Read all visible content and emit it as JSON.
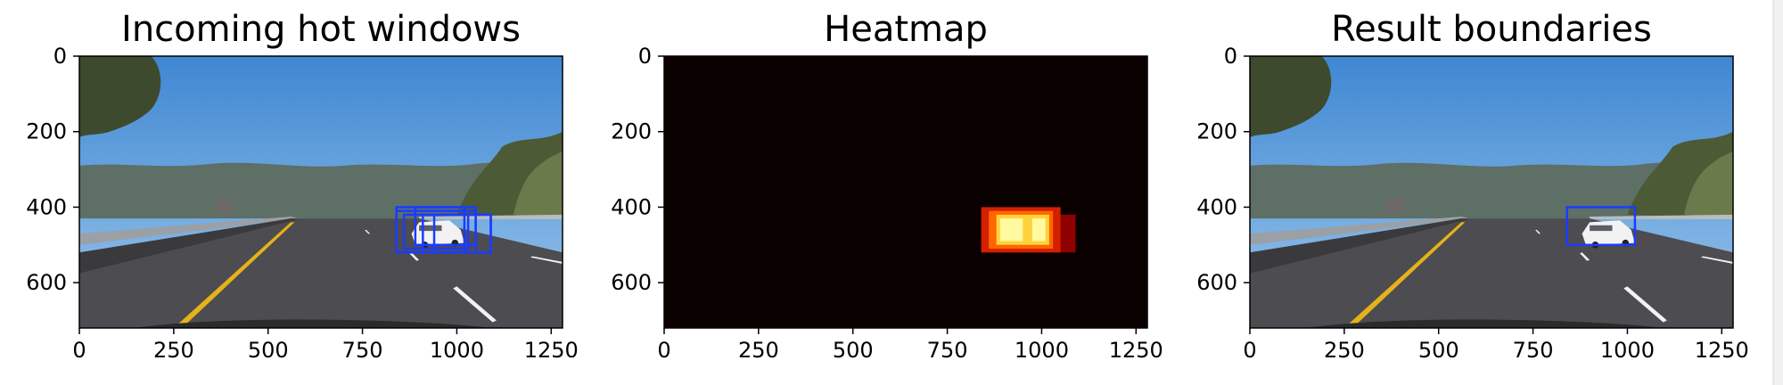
{
  "chart_data": [
    {
      "type": "image",
      "title": "Incoming hot windows",
      "image": "road-scene",
      "xlim": [
        0,
        1280
      ],
      "ylim": [
        720,
        0
      ],
      "xticks": [
        0,
        250,
        500,
        750,
        1000,
        1250
      ],
      "yticks": [
        0,
        200,
        400,
        600
      ],
      "xtick_labels": [
        "0",
        "250",
        "500",
        "750",
        "1000",
        "1250"
      ],
      "ytick_labels": [
        "0",
        "200",
        "400",
        "600"
      ],
      "boxes": [
        {
          "x0": 840,
          "y0": 400,
          "x1": 1020,
          "y1": 520
        },
        {
          "x0": 840,
          "y0": 410,
          "x1": 1050,
          "y1": 520
        },
        {
          "x0": 890,
          "y0": 400,
          "x1": 1050,
          "y1": 500
        },
        {
          "x0": 910,
          "y0": 420,
          "x1": 1090,
          "y1": 520
        },
        {
          "x0": 860,
          "y0": 420,
          "x1": 1030,
          "y1": 510
        },
        {
          "x0": 940,
          "y0": 420,
          "x1": 1090,
          "y1": 520
        }
      ],
      "box_color": "#1a3cff"
    },
    {
      "type": "heatmap",
      "title": "Heatmap",
      "xlim": [
        0,
        1280
      ],
      "ylim": [
        720,
        0
      ],
      "xticks": [
        0,
        250,
        500,
        750,
        1000,
        1250
      ],
      "yticks": [
        0,
        200,
        400,
        600
      ],
      "xtick_labels": [
        "0",
        "250",
        "500",
        "750",
        "1000",
        "1250"
      ],
      "ytick_labels": [
        "0",
        "200",
        "400",
        "600"
      ],
      "background": "#0b0000",
      "cells": [
        {
          "x0": 840,
          "y0": 420,
          "x1": 1090,
          "y1": 520,
          "color": "#8f0000"
        },
        {
          "x0": 840,
          "y0": 400,
          "x1": 1050,
          "y1": 520,
          "color": "#d22000"
        },
        {
          "x0": 860,
          "y0": 410,
          "x1": 1030,
          "y1": 510,
          "color": "#ff6500"
        },
        {
          "x0": 880,
          "y0": 420,
          "x1": 1020,
          "y1": 500,
          "color": "#ffd23c"
        },
        {
          "x0": 890,
          "y0": 430,
          "x1": 950,
          "y1": 490,
          "color": "#fffaa0"
        },
        {
          "x0": 975,
          "y0": 430,
          "x1": 1010,
          "y1": 490,
          "color": "#fffaa0"
        }
      ]
    },
    {
      "type": "image",
      "title": "Result boundaries",
      "image": "road-scene",
      "xlim": [
        0,
        1280
      ],
      "ylim": [
        720,
        0
      ],
      "xticks": [
        0,
        250,
        500,
        750,
        1000,
        1250
      ],
      "yticks": [
        0,
        200,
        400,
        600
      ],
      "xtick_labels": [
        "0",
        "250",
        "500",
        "750",
        "1000",
        "1250"
      ],
      "ytick_labels": [
        "0",
        "200",
        "400",
        "600"
      ],
      "boxes": [
        {
          "x0": 840,
          "y0": 400,
          "x1": 1020,
          "y1": 500
        }
      ],
      "box_color": "#1a3cff"
    }
  ],
  "scene_colors": {
    "sky_top": "#3f87d3",
    "sky_bottom": "#9cc6ea",
    "hills": "#5e6f66",
    "trees": "#3e4a2e",
    "road": "#4d4c50",
    "road_dark": "#3a393c",
    "lane_yellow": "#e5b21a",
    "lane_white": "#f2f2f2",
    "barrier": "#9aa0a6",
    "car": "#f2f2f2"
  }
}
